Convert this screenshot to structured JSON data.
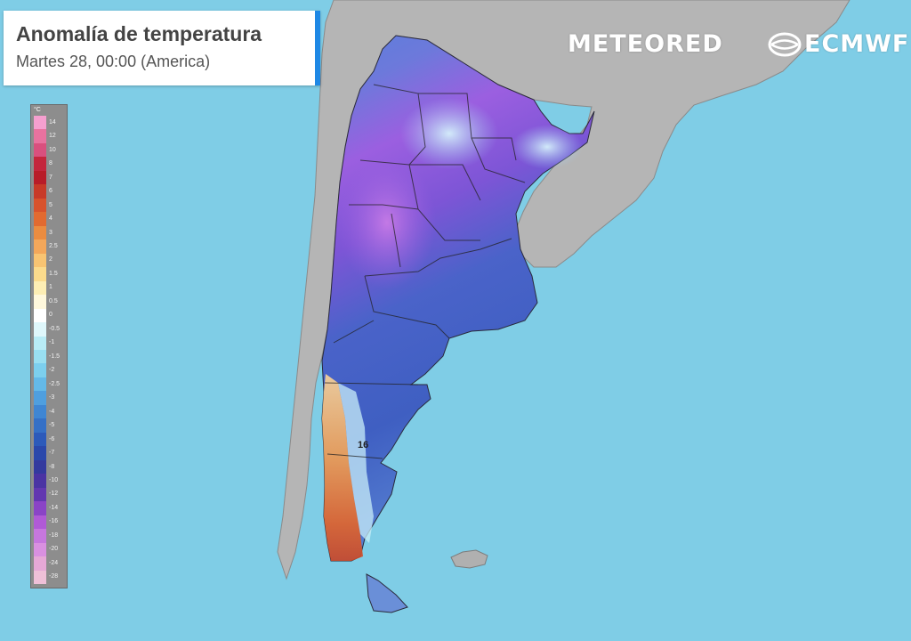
{
  "header": {
    "title": "Anomalía de temperatura",
    "subtitle": "Martes 28, 00:00 (America)"
  },
  "brands": {
    "meteored": "METEORED",
    "ecmwf": "ECMWF"
  },
  "legend": {
    "unit": "°C",
    "ticks": [
      "14",
      "12",
      "10",
      "8",
      "7",
      "6",
      "5",
      "4",
      "3",
      "2.5",
      "2",
      "1.5",
      "1",
      "0.5",
      "0",
      "-0.5",
      "-1",
      "-1.5",
      "-2",
      "-2.5",
      "-3",
      "-4",
      "-5",
      "-6",
      "-7",
      "-8",
      "-10",
      "-12",
      "-14",
      "-16",
      "-18",
      "-20",
      "-24",
      "-28"
    ],
    "colors": [
      "#f59fcf",
      "#e8729f",
      "#d9507e",
      "#c4263c",
      "#b81c28",
      "#c83a28",
      "#d8522c",
      "#e26a30",
      "#eb8c40",
      "#f3a75a",
      "#f8c472",
      "#fbdb8c",
      "#fdeeb4",
      "#fff8dc",
      "#ffffff",
      "#dff7fb",
      "#b8ecf6",
      "#99dff1",
      "#7ccfee",
      "#64b9e8",
      "#4f9fdf",
      "#3f86d3",
      "#3570c6",
      "#2c5aba",
      "#2a48ab",
      "#33399e",
      "#4a33a3",
      "#6237b0",
      "#8a44c6",
      "#b05ad6",
      "#c677dd",
      "#d990e0",
      "#e6a8d6",
      "#efc0d8"
    ]
  },
  "map": {
    "marker_label": "16"
  }
}
